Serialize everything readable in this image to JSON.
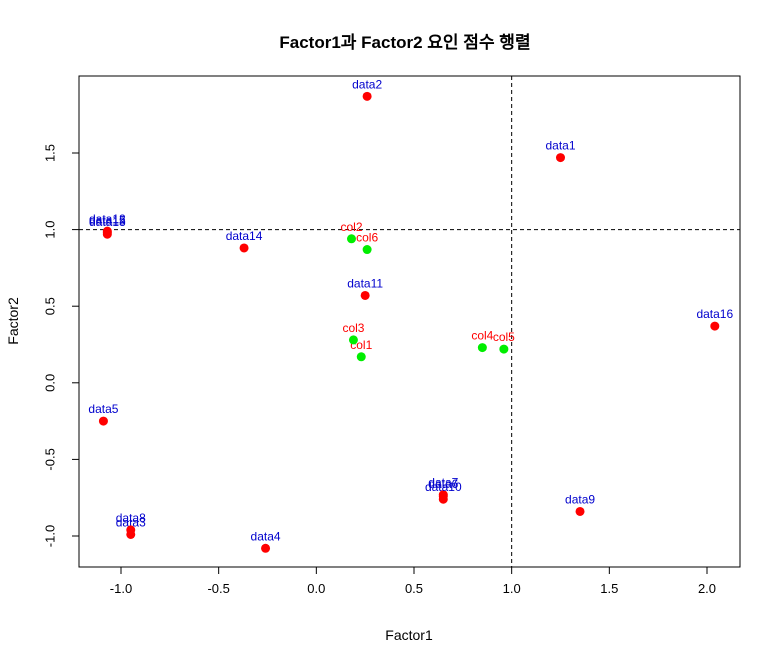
{
  "chart_data": {
    "type": "scatter",
    "title": "Factor1과 Factor2 요인 점수 행렬",
    "xlabel": "Factor1",
    "ylabel": "Factor2",
    "xlim": [
      -1.2,
      2.15
    ],
    "ylim": [
      -1.2,
      1.95
    ],
    "x_ticks": [
      -1.0,
      -0.5,
      0.0,
      0.5,
      1.0,
      1.5,
      2.0
    ],
    "x_tick_labels": [
      "-1.0",
      "-0.5",
      "0.0",
      "0.5",
      "1.0",
      "1.5",
      "2.0"
    ],
    "y_ticks": [
      -1.0,
      -0.5,
      0.0,
      0.5,
      1.0,
      1.5
    ],
    "y_tick_labels": [
      "-1.0",
      "-0.5",
      "0.0",
      "0.5",
      "1.0",
      "1.5"
    ],
    "reference_lines": {
      "vertical_x": 1.0,
      "horizontal_y": 1.0,
      "style": "dashed"
    },
    "grid": false,
    "series": [
      {
        "color": "#ff0000",
        "label_color": "#0000cd",
        "points": [
          {
            "label": "data1",
            "x": 1.25,
            "y": 1.47
          },
          {
            "label": "data2",
            "x": 0.26,
            "y": 1.87
          },
          {
            "label": "data3",
            "x": -0.95,
            "y": -0.99
          },
          {
            "label": "data4",
            "x": -0.26,
            "y": -1.08
          },
          {
            "label": "data5",
            "x": -1.09,
            "y": -0.25
          },
          {
            "label": "data6",
            "x": 0.65,
            "y": -0.74
          },
          {
            "label": "data7",
            "x": 0.65,
            "y": -0.73
          },
          {
            "label": "data8",
            "x": -0.95,
            "y": -0.96
          },
          {
            "label": "data9",
            "x": 1.35,
            "y": -0.84
          },
          {
            "label": "data10",
            "x": 0.65,
            "y": -0.76
          },
          {
            "label": "data11",
            "x": 0.25,
            "y": 0.57
          },
          {
            "label": "data12",
            "x": -1.07,
            "y": 0.99
          },
          {
            "label": "data13",
            "x": -1.07,
            "y": 0.97
          },
          {
            "label": "data14",
            "x": -0.37,
            "y": 0.88
          },
          {
            "label": "data15",
            "x": -1.07,
            "y": 0.98
          },
          {
            "label": "data16",
            "x": 2.04,
            "y": 0.37
          }
        ]
      },
      {
        "color": "#00ee00",
        "label_color": "#ff0000",
        "points": [
          {
            "label": "col1",
            "x": 0.23,
            "y": 0.17
          },
          {
            "label": "col2",
            "x": 0.18,
            "y": 0.94
          },
          {
            "label": "col3",
            "x": 0.19,
            "y": 0.28
          },
          {
            "label": "col4",
            "x": 0.85,
            "y": 0.23
          },
          {
            "label": "col5",
            "x": 0.96,
            "y": 0.22
          },
          {
            "label": "col6",
            "x": 0.26,
            "y": 0.87
          }
        ]
      }
    ]
  }
}
